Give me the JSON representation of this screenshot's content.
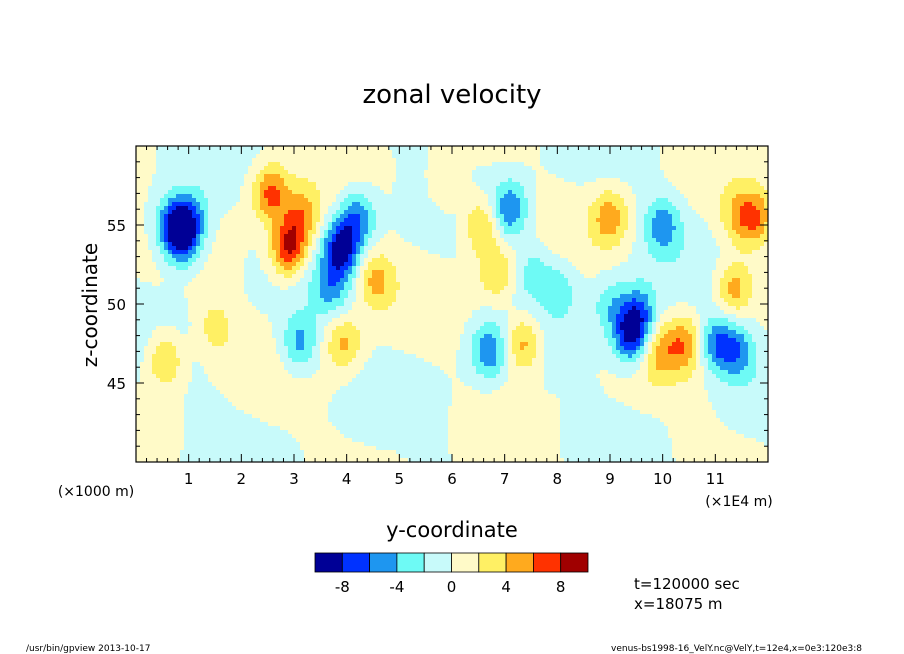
{
  "chart_data": {
    "type": "heatmap",
    "title": "zonal velocity",
    "xlabel": "y-coordinate",
    "ylabel": "z-coordinate",
    "x_unit_note": "(×1E4 m)",
    "y_unit_note": "(×1000 m)",
    "xlim": [
      0,
      12
    ],
    "ylim": [
      40,
      60
    ],
    "x_ticks": [
      "1",
      "2",
      "3",
      "4",
      "5",
      "6",
      "7",
      "8",
      "9",
      "10",
      "11"
    ],
    "y_ticks": [
      "45",
      "50",
      "55"
    ],
    "colorbar": {
      "levels": [
        -10,
        -8,
        -6,
        -4,
        -2,
        0,
        2,
        4,
        6,
        8,
        10
      ],
      "labels": [
        "-8",
        "-4",
        "0",
        "4",
        "8"
      ],
      "colors": [
        "#000096",
        "#0032ff",
        "#1e96f0",
        "#6efaf5",
        "#c8fafa",
        "#fffac8",
        "#fff064",
        "#ffaa1e",
        "#ff3200",
        "#a00000"
      ]
    },
    "features": [
      {
        "y": 0.75,
        "z": 55.0,
        "u": -8.5
      },
      {
        "y": 0.9,
        "z": 54.0,
        "u": -6.0
      },
      {
        "y": 1.1,
        "z": 55.5,
        "u": -4.0
      },
      {
        "y": 0.55,
        "z": 46.5,
        "u": 5.0
      },
      {
        "y": 1.5,
        "z": 48.5,
        "u": 3.0
      },
      {
        "y": 2.55,
        "z": 57.0,
        "u": 6.5
      },
      {
        "y": 2.9,
        "z": 53.5,
        "u": 8.5
      },
      {
        "y": 3.15,
        "z": 55.5,
        "u": 5.0
      },
      {
        "y": 3.1,
        "z": 47.5,
        "u": -5.0
      },
      {
        "y": 3.9,
        "z": 53.5,
        "u": -8.5
      },
      {
        "y": 4.2,
        "z": 55.5,
        "u": -6.0
      },
      {
        "y": 3.7,
        "z": 51.0,
        "u": -4.0
      },
      {
        "y": 4.55,
        "z": 51.5,
        "u": 4.5
      },
      {
        "y": 3.95,
        "z": 47.5,
        "u": 4.5
      },
      {
        "y": 5.9,
        "z": 57.5,
        "u": 3.0
      },
      {
        "y": 6.55,
        "z": 55.0,
        "u": 5.0
      },
      {
        "y": 6.85,
        "z": 52.0,
        "u": 4.0
      },
      {
        "y": 7.35,
        "z": 47.5,
        "u": 5.5
      },
      {
        "y": 6.7,
        "z": 47.0,
        "u": -5.5
      },
      {
        "y": 7.1,
        "z": 56.0,
        "u": -6.0
      },
      {
        "y": 7.55,
        "z": 52.0,
        "u": -3.0
      },
      {
        "y": 8.05,
        "z": 51.0,
        "u": -3.0
      },
      {
        "y": 9.0,
        "z": 50.0,
        "u": -3.0
      },
      {
        "y": 9.4,
        "z": 48.0,
        "u": -8.5
      },
      {
        "y": 9.55,
        "z": 49.5,
        "u": -5.0
      },
      {
        "y": 9.0,
        "z": 55.5,
        "u": 5.0
      },
      {
        "y": 10.0,
        "z": 55.0,
        "u": -5.0
      },
      {
        "y": 10.45,
        "z": 47.5,
        "u": 5.0
      },
      {
        "y": 9.95,
        "z": 47.0,
        "u": 4.0
      },
      {
        "y": 11.0,
        "z": 47.5,
        "u": -5.5
      },
      {
        "y": 11.4,
        "z": 47.0,
        "u": -5.0
      },
      {
        "y": 11.35,
        "z": 51.0,
        "u": 5.0
      },
      {
        "y": 11.75,
        "z": 55.5,
        "u": 5.5
      },
      {
        "y": 11.4,
        "z": 55.5,
        "u": 3.0
      },
      {
        "y": 5.0,
        "z": 43.0,
        "u": 1.0
      },
      {
        "y": 1.5,
        "z": 42.0,
        "u": -1.0
      },
      {
        "y": 8.5,
        "z": 42.0,
        "u": -1.0
      },
      {
        "y": 10.5,
        "z": 41.0,
        "u": 1.0
      }
    ]
  },
  "annotations": {
    "time": "t=120000 sec",
    "position": "x=18075 m"
  },
  "footer": {
    "left": "/usr/bin/gpview  2013-10-17",
    "right": "venus-bs1998-16_VelY.nc@VelY,t=12e4,x=0e3:120e3:8"
  }
}
